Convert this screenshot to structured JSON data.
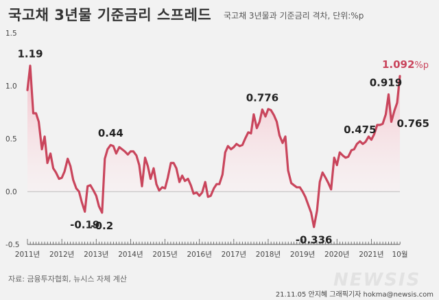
{
  "header": {
    "title": "국고채 3년물 기준금리 스프레드",
    "subtitle": "국고채 3년물과 기준금리 격차, 단위:%p"
  },
  "footer": {
    "source": "자료: 금융투자협회, 뉴시스 자체 계산",
    "credit": "21.11.05 안지혜 그래픽기자 hokma@newsis.com",
    "watermark": "NEWSIS"
  },
  "colors": {
    "line": "#c9455c",
    "fill_top": "#f3b6c1",
    "accent_label": "#c9455c"
  },
  "chart_data": {
    "type": "area",
    "title": "국고채 3년물 기준금리 스프레드",
    "subtitle": "국고채 3년물과 기준금리 격차, 단위:%p",
    "ylabel": "",
    "ylim": [
      -0.5,
      1.5
    ],
    "yticks": [
      -0.5,
      0.0,
      0.5,
      1.0,
      1.5
    ],
    "ytick_labels": [
      "-0.5",
      "0.0",
      "0.5",
      "1.0",
      "1.5"
    ],
    "xlim": [
      2011.0,
      2021.83
    ],
    "xticks": [
      {
        "x": 2011.0,
        "label": "2011년"
      },
      {
        "x": 2012.0,
        "label": "2012년"
      },
      {
        "x": 2013.0,
        "label": "2013년"
      },
      {
        "x": 2014.0,
        "label": "2014년"
      },
      {
        "x": 2015.0,
        "label": "2015년"
      },
      {
        "x": 2016.0,
        "label": "2016년"
      },
      {
        "x": 2017.0,
        "label": "2017년"
      },
      {
        "x": 2018.0,
        "label": "2018년"
      },
      {
        "x": 2019.0,
        "label": "2019년"
      },
      {
        "x": 2020.0,
        "label": "2020년"
      },
      {
        "x": 2021.0,
        "label": "2021년"
      },
      {
        "x": 2021.83,
        "label": "10월"
      }
    ],
    "grid": false,
    "series": [
      {
        "x": [
          2011.0,
          2011.08,
          2011.17,
          2011.25,
          2011.33,
          2011.42,
          2011.5,
          2011.58,
          2011.67,
          2011.75,
          2011.83,
          2011.92,
          2012.0,
          2012.08,
          2012.17,
          2012.25,
          2012.33,
          2012.42,
          2012.5,
          2012.58,
          2012.67,
          2012.75,
          2012.83,
          2012.92,
          2013.0,
          2013.08,
          2013.17,
          2013.25,
          2013.33,
          2013.42,
          2013.5,
          2013.58,
          2013.67,
          2013.75,
          2013.83,
          2013.92,
          2014.0,
          2014.08,
          2014.17,
          2014.25,
          2014.33,
          2014.42,
          2014.5,
          2014.58,
          2014.67,
          2014.75,
          2014.83,
          2014.92,
          2015.0,
          2015.08,
          2015.17,
          2015.25,
          2015.33,
          2015.42,
          2015.5,
          2015.58,
          2015.67,
          2015.75,
          2015.83,
          2015.92,
          2016.0,
          2016.08,
          2016.17,
          2016.25,
          2016.33,
          2016.42,
          2016.5,
          2016.58,
          2016.67,
          2016.75,
          2016.83,
          2016.92,
          2017.0,
          2017.08,
          2017.17,
          2017.25,
          2017.33,
          2017.42,
          2017.5,
          2017.58,
          2017.67,
          2017.75,
          2017.83,
          2017.92,
          2018.0,
          2018.08,
          2018.17,
          2018.25,
          2018.33,
          2018.42,
          2018.5,
          2018.58,
          2018.67,
          2018.75,
          2018.83,
          2018.92,
          2019.0,
          2019.08,
          2019.17,
          2019.25,
          2019.33,
          2019.42,
          2019.5,
          2019.58,
          2019.67,
          2019.75,
          2019.83,
          2019.92,
          2020.0,
          2020.08,
          2020.17,
          2020.25,
          2020.33,
          2020.42,
          2020.5,
          2020.58,
          2020.67,
          2020.75,
          2020.83,
          2020.92,
          2021.0,
          2021.08,
          2021.17,
          2021.25,
          2021.33,
          2021.42,
          2021.5,
          2021.58,
          2021.67,
          2021.75,
          2021.83
        ],
        "values": [
          0.96,
          1.19,
          0.74,
          0.74,
          0.66,
          0.4,
          0.52,
          0.27,
          0.36,
          0.22,
          0.18,
          0.12,
          0.13,
          0.19,
          0.31,
          0.24,
          0.11,
          0.03,
          0.0,
          -0.1,
          -0.19,
          0.05,
          0.06,
          0.01,
          -0.04,
          -0.14,
          -0.2,
          0.31,
          0.4,
          0.44,
          0.43,
          0.36,
          0.42,
          0.4,
          0.38,
          0.35,
          0.38,
          0.38,
          0.34,
          0.25,
          0.05,
          0.32,
          0.24,
          0.12,
          0.22,
          0.07,
          0.01,
          0.04,
          0.03,
          0.13,
          0.27,
          0.27,
          0.22,
          0.09,
          0.15,
          0.1,
          0.12,
          0.06,
          -0.02,
          -0.01,
          -0.04,
          -0.01,
          0.09,
          -0.05,
          -0.04,
          0.03,
          0.07,
          0.07,
          0.16,
          0.37,
          0.43,
          0.4,
          0.42,
          0.45,
          0.43,
          0.44,
          0.5,
          0.56,
          0.55,
          0.73,
          0.6,
          0.66,
          0.776,
          0.71,
          0.78,
          0.77,
          0.72,
          0.66,
          0.53,
          0.46,
          0.52,
          0.2,
          0.08,
          0.06,
          0.04,
          0.04,
          0.0,
          -0.05,
          -0.13,
          -0.2,
          -0.336,
          -0.18,
          0.09,
          0.18,
          0.13,
          0.08,
          0.02,
          0.32,
          0.25,
          0.37,
          0.34,
          0.32,
          0.33,
          0.39,
          0.4,
          0.45,
          0.475,
          0.45,
          0.47,
          0.52,
          0.49,
          0.54,
          0.63,
          0.63,
          0.64,
          0.73,
          0.919,
          0.66,
          0.765,
          0.84,
          1.092
        ]
      }
    ],
    "annotations": [
      {
        "x": 2011.08,
        "y": 1.19,
        "text": "1.19",
        "accent": false,
        "pos": "above"
      },
      {
        "x": 2012.67,
        "y": -0.19,
        "text": "-0.19",
        "accent": false,
        "pos": "below"
      },
      {
        "x": 2013.17,
        "y": -0.2,
        "text": "-0.2",
        "accent": false,
        "pos": "below"
      },
      {
        "x": 2013.42,
        "y": 0.44,
        "text": "0.44",
        "accent": false,
        "pos": "above"
      },
      {
        "x": 2017.83,
        "y": 0.776,
        "text": "0.776",
        "accent": false,
        "pos": "above"
      },
      {
        "x": 2019.33,
        "y": -0.336,
        "text": "-0.336",
        "accent": false,
        "pos": "below"
      },
      {
        "x": 2020.67,
        "y": 0.475,
        "text": "0.475",
        "accent": false,
        "pos": "above"
      },
      {
        "x": 2021.42,
        "y": 0.919,
        "text": "0.919",
        "accent": false,
        "pos": "above"
      },
      {
        "x": 2021.58,
        "y": 0.765,
        "text": "0.765",
        "accent": false,
        "pos": "right"
      },
      {
        "x": 2021.83,
        "y": 1.092,
        "text": "1.092",
        "unit": "%p",
        "accent": true,
        "pos": "above"
      }
    ]
  }
}
